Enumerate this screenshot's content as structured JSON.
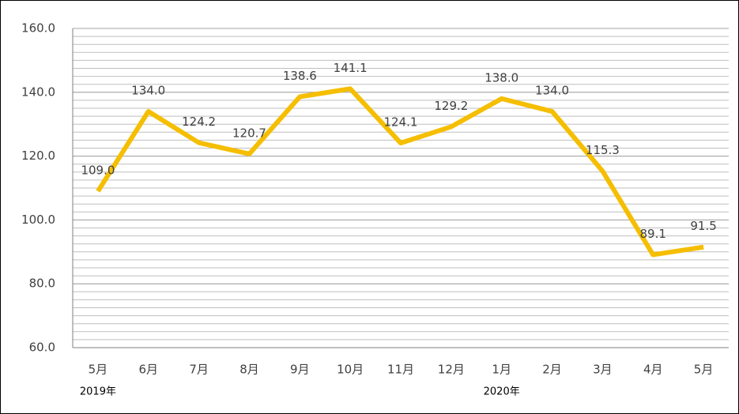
{
  "chart_data": {
    "type": "line",
    "categories": [
      "5月",
      "6月",
      "7月",
      "8月",
      "9月",
      "10月",
      "11月",
      "12月",
      "1月",
      "2月",
      "3月",
      "4月",
      "5月"
    ],
    "category_years": [
      "2019年",
      null,
      null,
      null,
      null,
      null,
      null,
      null,
      "2020年",
      null,
      null,
      null,
      null
    ],
    "values": [
      109,
      134,
      124.2,
      120.7,
      138.6,
      141.1,
      124.1,
      129.2,
      138,
      134,
      115.3,
      89.1,
      91.5
    ],
    "value_labels": [
      "109.0",
      "134.0",
      "124.2",
      "120.7",
      "138.6",
      "141.1",
      "124.1",
      "129.2",
      "138.0",
      "134.0",
      "115.3",
      "89.1",
      "91.5"
    ],
    "color": "#f5be00",
    "ylim": [
      60,
      160
    ],
    "yticks": [
      {
        "value": 60,
        "label": "60.0"
      },
      {
        "value": 80,
        "label": "80.0"
      },
      {
        "value": 100,
        "label": "100.0"
      },
      {
        "value": 120,
        "label": "120.0"
      },
      {
        "value": 140,
        "label": "140.0"
      },
      {
        "value": 160,
        "label": "160.0"
      }
    ],
    "grid": true,
    "minor_grid": 2.5
  }
}
